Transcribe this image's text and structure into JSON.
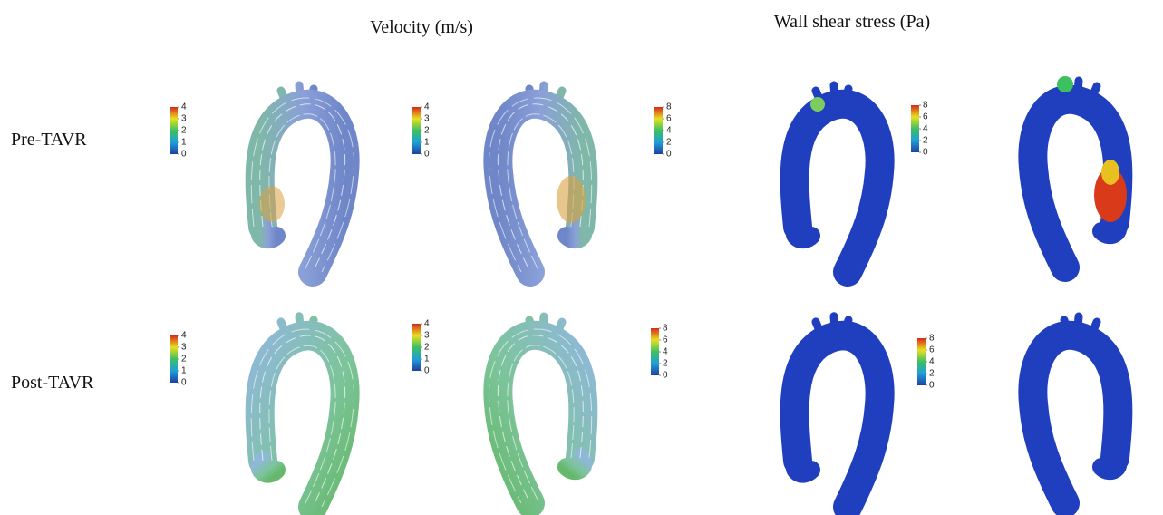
{
  "columns": [
    "Velocity (m/s)",
    "Wall shear stress (Pa)"
  ],
  "rows": [
    "Pre-TAVR",
    "Post-TAVR"
  ],
  "colorbars": [
    {
      "ticks": [
        0,
        1,
        2,
        3,
        4
      ]
    },
    {
      "ticks": [
        0,
        1,
        2,
        3,
        4
      ]
    },
    {
      "ticks": [
        0,
        2,
        4,
        6,
        8
      ]
    },
    {
      "ticks": [
        0,
        2,
        4,
        6,
        8
      ]
    },
    {
      "ticks": [
        0,
        1,
        2,
        3,
        4
      ]
    },
    {
      "ticks": [
        0,
        1,
        2,
        3,
        4
      ]
    },
    {
      "ticks": [
        0,
        2,
        4,
        6,
        8
      ]
    },
    {
      "ticks": [
        0,
        2,
        4,
        6,
        8
      ]
    }
  ]
}
